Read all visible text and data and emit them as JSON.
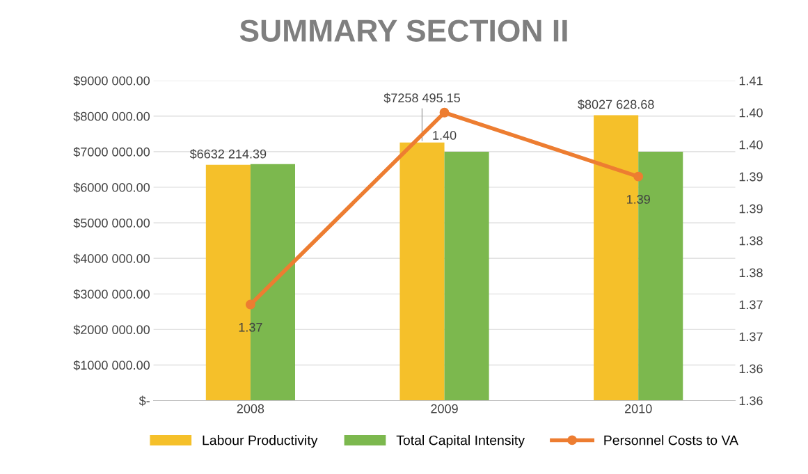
{
  "chart_data": {
    "type": "bar",
    "title": "SUMMARY SECTION II",
    "categories": [
      "2008",
      "2009",
      "2010"
    ],
    "series": [
      {
        "name": "Labour Productivity",
        "color": "#f5c02a",
        "values": [
          6632214.39,
          7258495.15,
          8027628.68
        ],
        "value_labels": [
          "$6632 214.39",
          "$7258 495.15",
          "$8027 628.68"
        ]
      },
      {
        "name": "Total Capital Intensity",
        "color": "#7cb84e",
        "values": [
          6650000,
          7000000,
          7000000
        ]
      },
      {
        "name": "Personnel Costs to VA",
        "type": "line",
        "axis": "y2",
        "color": "#ed7d31",
        "marker": "circle",
        "values": [
          1.37,
          1.4,
          1.39
        ],
        "value_labels": [
          "1.37",
          "1.40",
          "1.39"
        ]
      }
    ],
    "ylim": [
      0,
      9000000
    ],
    "yticks": [
      {
        "value": 0,
        "label": "$-"
      },
      {
        "value": 1000000,
        "label": "$1000 000.00"
      },
      {
        "value": 2000000,
        "label": "$2000 000.00"
      },
      {
        "value": 3000000,
        "label": "$3000 000.00"
      },
      {
        "value": 4000000,
        "label": "$4000 000.00"
      },
      {
        "value": 5000000,
        "label": "$5000 000.00"
      },
      {
        "value": 6000000,
        "label": "$6000 000.00"
      },
      {
        "value": 7000000,
        "label": "$7000 000.00"
      },
      {
        "value": 8000000,
        "label": "$8000 000.00"
      },
      {
        "value": 9000000,
        "label": "$9000 000.00"
      }
    ],
    "y2lim": [
      1.355,
      1.405
    ],
    "y2ticks": [
      {
        "value": 1.355,
        "label": "1.36"
      },
      {
        "value": 1.36,
        "label": "1.36"
      },
      {
        "value": 1.365,
        "label": "1.37"
      },
      {
        "value": 1.37,
        "label": "1.37"
      },
      {
        "value": 1.375,
        "label": "1.38"
      },
      {
        "value": 1.38,
        "label": "1.38"
      },
      {
        "value": 1.385,
        "label": "1.39"
      },
      {
        "value": 1.39,
        "label": "1.39"
      },
      {
        "value": 1.395,
        "label": "1.40"
      },
      {
        "value": 1.4,
        "label": "1.40"
      },
      {
        "value": 1.405,
        "label": "1.41"
      }
    ],
    "grid": "y",
    "legend": "bottom"
  }
}
